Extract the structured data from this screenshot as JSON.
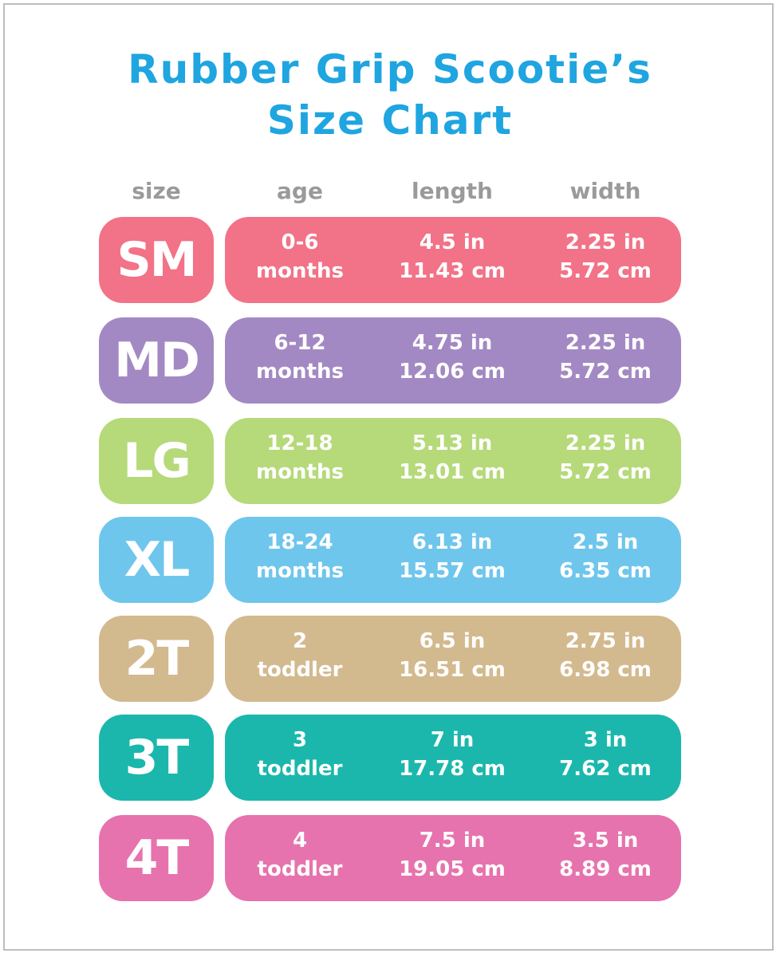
{
  "title": {
    "line1": "Rubber Grip Scootie’s",
    "line2": "Size Chart"
  },
  "headers": {
    "size": "size",
    "age": "age",
    "length": "length",
    "width": "width"
  },
  "colors": {
    "title": "#1fa5e0",
    "header": "#9a9a9a",
    "SM": "#f27287",
    "MD": "#a389c3",
    "LG": "#b6d97a",
    "XL": "#6fc6ec",
    "2T": "#d3b98e",
    "3T": "#1bb7ac",
    "4T": "#e673ad"
  },
  "rows": [
    {
      "size": "SM",
      "age1": "0-6",
      "age2": "months",
      "len_in": "4.5 in",
      "len_cm": "11.43 cm",
      "wid_in": "2.25 in",
      "wid_cm": "5.72 cm"
    },
    {
      "size": "MD",
      "age1": "6-12",
      "age2": "months",
      "len_in": "4.75 in",
      "len_cm": "12.06 cm",
      "wid_in": "2.25 in",
      "wid_cm": "5.72 cm"
    },
    {
      "size": "LG",
      "age1": "12-18",
      "age2": "months",
      "len_in": "5.13 in",
      "len_cm": "13.01 cm",
      "wid_in": "2.25 in",
      "wid_cm": "5.72 cm"
    },
    {
      "size": "XL",
      "age1": "18-24",
      "age2": "months",
      "len_in": "6.13 in",
      "len_cm": "15.57 cm",
      "wid_in": "2.5 in",
      "wid_cm": "6.35 cm"
    },
    {
      "size": "2T",
      "age1": "2",
      "age2": "toddler",
      "len_in": "6.5 in",
      "len_cm": "16.51 cm",
      "wid_in": "2.75 in",
      "wid_cm": "6.98 cm"
    },
    {
      "size": "3T",
      "age1": "3",
      "age2": "toddler",
      "len_in": "7 in",
      "len_cm": "17.78 cm",
      "wid_in": "3 in",
      "wid_cm": "7.62 cm"
    },
    {
      "size": "4T",
      "age1": "4",
      "age2": "toddler",
      "len_in": "7.5 in",
      "len_cm": "19.05 cm",
      "wid_in": "3.5 in",
      "wid_cm": "8.89 cm"
    }
  ]
}
